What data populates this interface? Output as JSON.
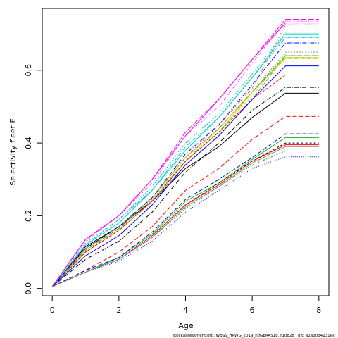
{
  "chart_data": {
    "type": "line",
    "xlabel": "Age",
    "ylabel": "Selectivity fleet F",
    "x": [
      0,
      1,
      2,
      3,
      4,
      5,
      6,
      7,
      8
    ],
    "xlim": [
      -0.3,
      8.3
    ],
    "ylim": [
      -0.02,
      0.77
    ],
    "xticks": [
      0,
      2,
      4,
      6,
      8
    ],
    "yticks": [
      0.0,
      0.2,
      0.4,
      0.6
    ],
    "ytick_labels": [
      "0.0",
      "0.2",
      "0.4",
      "0.6"
    ],
    "grid": false,
    "legend": false,
    "footnote": "stockassessment.org, WBSS_HAWG_2019_noGERAS18, r10828 , git: e2a30d4231&c",
    "series": [
      {
        "color": "#000000",
        "dash": "",
        "values": [
          0.005,
          0.115,
          0.17,
          0.24,
          0.33,
          0.39,
          0.47,
          0.537,
          0.537
        ]
      },
      {
        "color": "#ff0000",
        "dash": "6,3",
        "values": [
          0.005,
          0.05,
          0.1,
          0.17,
          0.27,
          0.33,
          0.41,
          0.473,
          0.473
        ]
      },
      {
        "color": "#00bb00",
        "dash": "2,2",
        "values": [
          0.005,
          0.045,
          0.08,
          0.14,
          0.22,
          0.28,
          0.34,
          0.378,
          0.378
        ]
      },
      {
        "color": "#0000ff",
        "dash": "1,2",
        "values": [
          0.005,
          0.045,
          0.075,
          0.13,
          0.21,
          0.27,
          0.33,
          0.362,
          0.362
        ]
      },
      {
        "color": "#00cccc",
        "dash": "5,2,1,2",
        "values": [
          0.005,
          0.12,
          0.19,
          0.27,
          0.39,
          0.47,
          0.58,
          0.69,
          0.69
        ]
      },
      {
        "color": "#ff00ff",
        "dash": "8,3",
        "values": [
          0.005,
          0.135,
          0.2,
          0.3,
          0.43,
          0.52,
          0.63,
          0.74,
          0.74
        ]
      },
      {
        "color": "#cccc00",
        "dash": "3,3",
        "values": [
          0.005,
          0.11,
          0.17,
          0.25,
          0.35,
          0.43,
          0.53,
          0.645,
          0.645
        ]
      },
      {
        "color": "#888888",
        "dash": "6,3",
        "values": [
          0.005,
          0.1,
          0.16,
          0.24,
          0.34,
          0.42,
          0.52,
          0.64,
          0.64
        ]
      },
      {
        "color": "#000000",
        "dash": "6,2,1,2",
        "values": [
          0.005,
          0.08,
          0.13,
          0.21,
          0.32,
          0.4,
          0.49,
          0.553,
          0.553
        ]
      },
      {
        "color": "#ff0000",
        "dash": "1,2",
        "values": [
          0.005,
          0.11,
          0.17,
          0.25,
          0.36,
          0.45,
          0.55,
          0.725,
          0.725
        ]
      },
      {
        "color": "#00bb00",
        "dash": "",
        "values": [
          0.005,
          0.045,
          0.085,
          0.15,
          0.24,
          0.29,
          0.355,
          0.415,
          0.415
        ]
      },
      {
        "color": "#0000ff",
        "dash": "6,3",
        "values": [
          0.005,
          0.05,
          0.085,
          0.155,
          0.245,
          0.3,
          0.36,
          0.425,
          0.425
        ]
      },
      {
        "color": "#00cccc",
        "dash": "",
        "values": [
          0.005,
          0.12,
          0.18,
          0.27,
          0.38,
          0.47,
          0.58,
          0.7,
          0.7
        ]
      },
      {
        "color": "#ff00ff",
        "dash": "1,2",
        "values": [
          0.005,
          0.13,
          0.2,
          0.29,
          0.42,
          0.5,
          0.62,
          0.735,
          0.735
        ]
      },
      {
        "color": "#cccc00",
        "dash": "",
        "values": [
          0.005,
          0.1,
          0.16,
          0.24,
          0.35,
          0.43,
          0.54,
          0.635,
          0.635
        ]
      },
      {
        "color": "#888888",
        "dash": "2,2",
        "values": [
          0.005,
          0.11,
          0.165,
          0.245,
          0.35,
          0.44,
          0.54,
          0.65,
          0.65
        ]
      },
      {
        "color": "#000000",
        "dash": "3,3",
        "values": [
          0.005,
          0.045,
          0.08,
          0.145,
          0.23,
          0.29,
          0.35,
          0.4,
          0.4
        ]
      },
      {
        "color": "#ff0000",
        "dash": "4,2",
        "values": [
          0.005,
          0.1,
          0.16,
          0.24,
          0.35,
          0.43,
          0.52,
          0.587,
          0.587
        ]
      },
      {
        "color": "#00bb00",
        "dash": "8,3",
        "values": [
          0.005,
          0.105,
          0.165,
          0.25,
          0.36,
          0.44,
          0.54,
          0.64,
          0.64
        ]
      },
      {
        "color": "#0000ff",
        "dash": "",
        "values": [
          0.005,
          0.09,
          0.145,
          0.23,
          0.34,
          0.42,
          0.52,
          0.612,
          0.612
        ]
      },
      {
        "color": "#00cccc",
        "dash": "2,2",
        "values": [
          0.005,
          0.125,
          0.19,
          0.28,
          0.4,
          0.48,
          0.59,
          0.705,
          0.705
        ]
      },
      {
        "color": "#ff00ff",
        "dash": "",
        "values": [
          0.005,
          0.135,
          0.2,
          0.3,
          0.42,
          0.52,
          0.63,
          0.73,
          0.73
        ]
      },
      {
        "color": "#cccc00",
        "dash": "6,3",
        "values": [
          0.005,
          0.105,
          0.17,
          0.25,
          0.36,
          0.44,
          0.54,
          0.632,
          0.632
        ]
      },
      {
        "color": "#0000ff",
        "dash": "6,2,1,2",
        "values": [
          0.005,
          0.11,
          0.17,
          0.25,
          0.37,
          0.45,
          0.56,
          0.675,
          0.675
        ]
      },
      {
        "color": "#ff0000",
        "dash": "",
        "values": [
          0.005,
          0.045,
          0.08,
          0.145,
          0.23,
          0.285,
          0.35,
          0.395,
          0.395
        ]
      },
      {
        "color": "#888888",
        "dash": "",
        "values": [
          0.005,
          0.045,
          0.08,
          0.14,
          0.225,
          0.28,
          0.345,
          0.39,
          0.39
        ]
      }
    ]
  }
}
